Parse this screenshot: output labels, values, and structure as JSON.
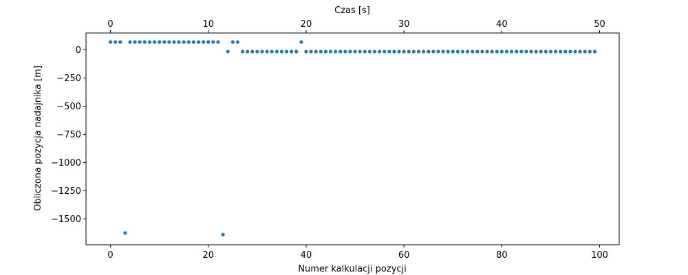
{
  "chart_data": {
    "type": "scatter",
    "xlabel": "Numer kalkulacji pozycji",
    "x2label": "Czas [s]",
    "ylabel": "Obliczona pozycja nadajnika [m]",
    "xlim": [
      -5,
      104
    ],
    "ylim": [
      -1730,
      150
    ],
    "x_ticks": [
      0,
      20,
      40,
      60,
      80,
      100
    ],
    "x2_ticks": [
      0,
      10,
      20,
      30,
      40,
      50
    ],
    "y_ticks": [
      0,
      -250,
      -500,
      -750,
      -1000,
      -1250,
      -1500
    ],
    "y_tick_labels": [
      "0",
      "−250",
      "−500",
      "−750",
      "−1000",
      "−1250",
      "−1500"
    ],
    "grid": false,
    "legend": "none",
    "marker_color": "#1f77b4",
    "series": [
      {
        "points": [
          [
            0,
            70
          ],
          [
            1,
            70
          ],
          [
            2,
            70
          ],
          [
            3,
            -1625
          ],
          [
            4,
            70
          ],
          [
            5,
            70
          ],
          [
            6,
            70
          ],
          [
            7,
            70
          ],
          [
            8,
            70
          ],
          [
            9,
            70
          ],
          [
            10,
            70
          ],
          [
            11,
            70
          ],
          [
            12,
            70
          ],
          [
            13,
            70
          ],
          [
            14,
            70
          ],
          [
            15,
            70
          ],
          [
            16,
            70
          ],
          [
            17,
            70
          ],
          [
            18,
            70
          ],
          [
            19,
            70
          ],
          [
            20,
            70
          ],
          [
            21,
            70
          ],
          [
            22,
            70
          ],
          [
            23,
            -1640
          ],
          [
            24,
            -15
          ],
          [
            25,
            70
          ],
          [
            26,
            70
          ],
          [
            27,
            -15
          ],
          [
            28,
            -15
          ],
          [
            29,
            -15
          ],
          [
            30,
            -15
          ],
          [
            31,
            -15
          ],
          [
            32,
            -15
          ],
          [
            33,
            -15
          ],
          [
            34,
            -15
          ],
          [
            35,
            -15
          ],
          [
            36,
            -15
          ],
          [
            37,
            -15
          ],
          [
            38,
            -15
          ],
          [
            39,
            70
          ],
          [
            40,
            -15
          ],
          [
            41,
            -15
          ],
          [
            42,
            -15
          ],
          [
            43,
            -15
          ],
          [
            44,
            -15
          ],
          [
            45,
            -15
          ],
          [
            46,
            -15
          ],
          [
            47,
            -15
          ],
          [
            48,
            -15
          ],
          [
            49,
            -15
          ],
          [
            50,
            -15
          ],
          [
            51,
            -15
          ],
          [
            52,
            -15
          ],
          [
            53,
            -15
          ],
          [
            54,
            -15
          ],
          [
            55,
            -15
          ],
          [
            56,
            -15
          ],
          [
            57,
            -15
          ],
          [
            58,
            -15
          ],
          [
            59,
            -15
          ],
          [
            60,
            -15
          ],
          [
            61,
            -15
          ],
          [
            62,
            -15
          ],
          [
            63,
            -15
          ],
          [
            64,
            -15
          ],
          [
            65,
            -15
          ],
          [
            66,
            -15
          ],
          [
            67,
            -15
          ],
          [
            68,
            -15
          ],
          [
            69,
            -15
          ],
          [
            70,
            -15
          ],
          [
            71,
            -15
          ],
          [
            72,
            -15
          ],
          [
            73,
            -15
          ],
          [
            74,
            -15
          ],
          [
            75,
            -15
          ],
          [
            76,
            -15
          ],
          [
            77,
            -15
          ],
          [
            78,
            -15
          ],
          [
            79,
            -15
          ],
          [
            80,
            -15
          ],
          [
            81,
            -15
          ],
          [
            82,
            -15
          ],
          [
            83,
            -15
          ],
          [
            84,
            -15
          ],
          [
            85,
            -15
          ],
          [
            86,
            -15
          ],
          [
            87,
            -15
          ],
          [
            88,
            -15
          ],
          [
            89,
            -15
          ],
          [
            90,
            -15
          ],
          [
            91,
            -15
          ],
          [
            92,
            -15
          ],
          [
            93,
            -15
          ],
          [
            94,
            -15
          ],
          [
            95,
            -15
          ],
          [
            96,
            -15
          ],
          [
            97,
            -15
          ],
          [
            98,
            -15
          ],
          [
            99,
            -15
          ]
        ]
      }
    ]
  }
}
